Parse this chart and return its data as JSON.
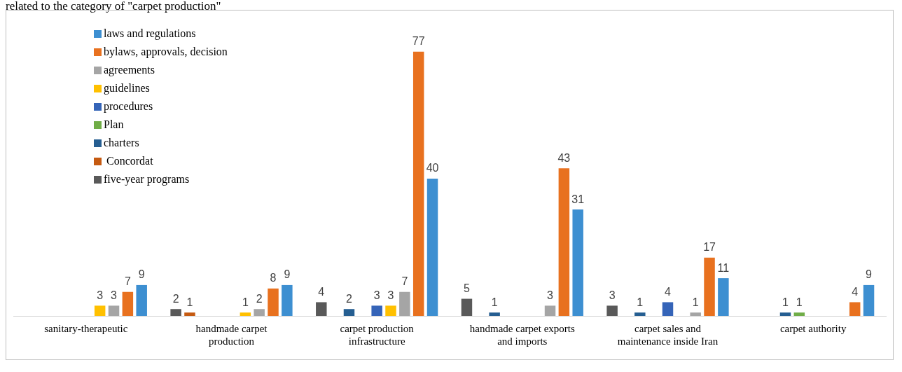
{
  "chart_data": {
    "type": "bar",
    "title": "related to the category of \"carpet production\"",
    "categories": [
      "sanitary-therapeutic",
      "handmade carpet production",
      "carpet production infrastructure",
      "handmade carpet exports and imports",
      "carpet sales and maintenance inside Iran",
      "carpet authority"
    ],
    "series": [
      {
        "name": "laws and regulations",
        "color": "#3d8fd1",
        "values": [
          9,
          9,
          40,
          31,
          11,
          9
        ]
      },
      {
        "name": "bylaws, approvals, decision",
        "color": "#e8711f",
        "values": [
          7,
          8,
          77,
          43,
          17,
          4
        ]
      },
      {
        "name": "agreements",
        "color": "#a5a5a5",
        "values": [
          3,
          2,
          7,
          3,
          1,
          null
        ]
      },
      {
        "name": "guidelines",
        "color": "#ffc000",
        "values": [
          3,
          1,
          3,
          null,
          null,
          null
        ]
      },
      {
        "name": "procedures",
        "color": "#3564b8",
        "values": [
          null,
          null,
          3,
          null,
          4,
          null
        ]
      },
      {
        "name": "Plan",
        "color": "#70ad47",
        "values": [
          null,
          null,
          null,
          null,
          null,
          1
        ]
      },
      {
        "name": "charters",
        "color": "#255e91",
        "values": [
          null,
          null,
          2,
          1,
          1,
          1
        ]
      },
      {
        "name": " Concordat",
        "color": "#c55a11",
        "values": [
          null,
          1,
          null,
          null,
          null,
          null
        ]
      },
      {
        "name": "five-year programs",
        "color": "#595959",
        "values": [
          null,
          2,
          4,
          5,
          3,
          null
        ]
      }
    ],
    "data_labels": true,
    "legend": "top left",
    "tick_labels": "x",
    "grid": false
  }
}
